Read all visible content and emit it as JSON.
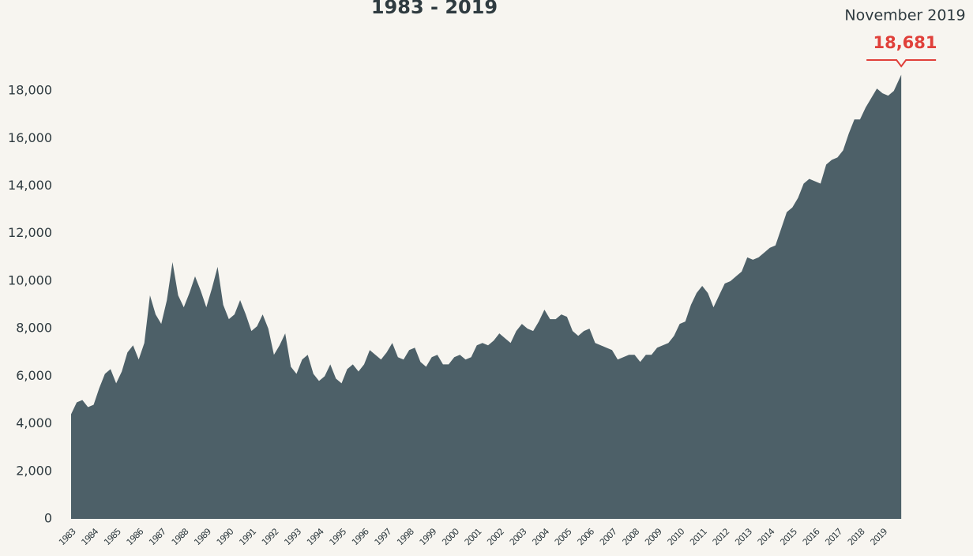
{
  "chart_data": {
    "type": "area",
    "title": "1983 - 2019",
    "color": "#4d6068",
    "x": [
      1983,
      1983.25,
      1983.5,
      1983.75,
      1984,
      1984.25,
      1984.5,
      1984.75,
      1985,
      1985.25,
      1985.5,
      1985.75,
      1986,
      1986.25,
      1986.5,
      1986.75,
      1987,
      1987.25,
      1987.5,
      1987.75,
      1988,
      1988.25,
      1988.5,
      1988.75,
      1989,
      1989.25,
      1989.5,
      1989.75,
      1990,
      1990.25,
      1990.5,
      1990.75,
      1991,
      1991.25,
      1991.5,
      1991.75,
      1992,
      1992.25,
      1992.5,
      1992.75,
      1993,
      1993.25,
      1993.5,
      1993.75,
      1994,
      1994.25,
      1994.5,
      1994.75,
      1995,
      1995.25,
      1995.5,
      1995.75,
      1996,
      1996.25,
      1996.5,
      1996.75,
      1997,
      1997.25,
      1997.5,
      1997.75,
      1998,
      1998.25,
      1998.5,
      1998.75,
      1999,
      1999.25,
      1999.5,
      1999.75,
      2000,
      2000.25,
      2000.5,
      2000.75,
      2001,
      2001.25,
      2001.5,
      2001.75,
      2002,
      2002.25,
      2002.5,
      2002.75,
      2003,
      2003.25,
      2003.5,
      2003.75,
      2004,
      2004.25,
      2004.5,
      2004.75,
      2005,
      2005.25,
      2005.5,
      2005.75,
      2006,
      2006.25,
      2006.5,
      2006.75,
      2007,
      2007.25,
      2007.5,
      2007.75,
      2008,
      2008.25,
      2008.5,
      2008.75,
      2009,
      2009.25,
      2009.5,
      2009.75,
      2010,
      2010.25,
      2010.5,
      2010.75,
      2011,
      2011.25,
      2011.5,
      2011.75,
      2012,
      2012.25,
      2012.5,
      2012.75,
      2013,
      2013.25,
      2013.5,
      2013.75,
      2014,
      2014.25,
      2014.5,
      2014.75,
      2015,
      2015.25,
      2015.5,
      2015.75,
      2016,
      2016.25,
      2016.5,
      2016.75,
      2017,
      2017.25,
      2017.5,
      2017.75,
      2018,
      2018.25,
      2018.5,
      2018.75,
      2019,
      2019.25,
      2019.5,
      2019.83
    ],
    "values": [
      4400,
      4900,
      5000,
      4700,
      4800,
      5500,
      6100,
      6300,
      5700,
      6200,
      7000,
      7300,
      6700,
      7400,
      9400,
      8600,
      8200,
      9200,
      10800,
      9400,
      8900,
      9500,
      10200,
      9600,
      8900,
      9700,
      10600,
      9000,
      8400,
      8600,
      9200,
      8600,
      7900,
      8100,
      8600,
      8000,
      6900,
      7300,
      7800,
      6400,
      6100,
      6700,
      6900,
      6100,
      5800,
      6000,
      6500,
      5900,
      5700,
      6300,
      6500,
      6200,
      6500,
      7100,
      6900,
      6700,
      7000,
      7400,
      6800,
      6700,
      7100,
      7200,
      6600,
      6400,
      6800,
      6900,
      6500,
      6500,
      6800,
      6900,
      6700,
      6800,
      7300,
      7400,
      7300,
      7500,
      7800,
      7600,
      7400,
      7900,
      8200,
      8000,
      7900,
      8300,
      8800,
      8400,
      8400,
      8600,
      8500,
      7900,
      7700,
      7900,
      8000,
      7400,
      7300,
      7200,
      7100,
      6700,
      6800,
      6900,
      6900,
      6600,
      6900,
      6900,
      7200,
      7300,
      7400,
      7700,
      8200,
      8300,
      9000,
      9500,
      9800,
      9500,
      8900,
      9400,
      9900,
      10000,
      10200,
      10400,
      11000,
      10900,
      11000,
      11200,
      11400,
      11500,
      12200,
      12900,
      13100,
      13500,
      14100,
      14300,
      14200,
      14100,
      14900,
      15100,
      15200,
      15500,
      16200,
      16800,
      16800,
      17300,
      17700,
      18100,
      17900,
      17800,
      18000,
      18681
    ],
    "xlim": [
      1983,
      2020
    ],
    "xticks": [
      1983,
      1984,
      1985,
      1986,
      1987,
      1988,
      1989,
      1990,
      1991,
      1992,
      1993,
      1994,
      1995,
      1996,
      1997,
      1998,
      1999,
      2000,
      2001,
      2002,
      2003,
      2004,
      2005,
      2006,
      2007,
      2008,
      2009,
      2010,
      2011,
      2012,
      2013,
      2014,
      2015,
      2016,
      2017,
      2018,
      2019
    ],
    "ylim": [
      0,
      19000
    ],
    "yticks": [
      0,
      {
        "value": 2000,
        "label": "2,000"
      },
      {
        "value": 4000,
        "label": "4,000"
      },
      {
        "value": 6000,
        "label": "6,000"
      },
      {
        "value": 8000,
        "label": "8,000"
      },
      {
        "value": 10000,
        "label": "10,000"
      },
      {
        "value": 12000,
        "label": "12,000"
      },
      {
        "value": 14000,
        "label": "14,000"
      },
      {
        "value": 16000,
        "label": "16,000"
      },
      {
        "value": 18000,
        "label": "18,000"
      }
    ],
    "annotation": {
      "date": "November 2019",
      "label": "18,681",
      "color": "#e0403a"
    }
  }
}
